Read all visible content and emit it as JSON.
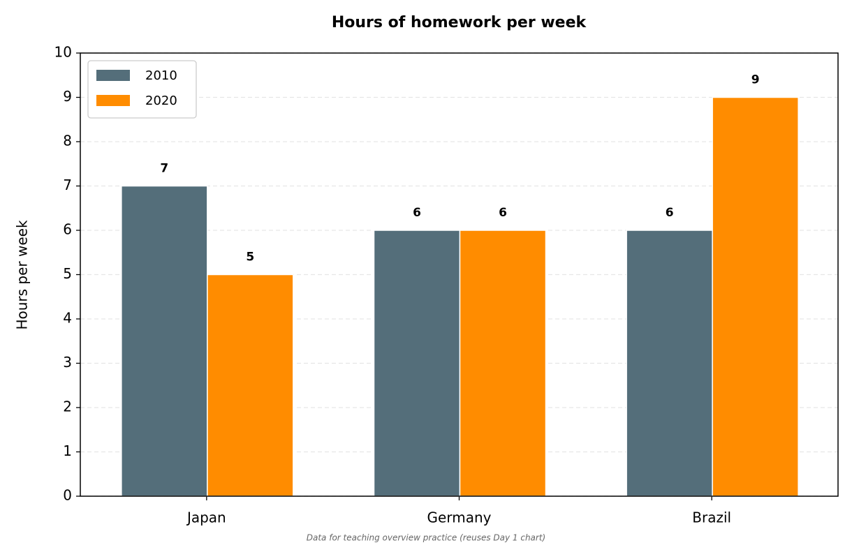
{
  "chart_data": {
    "type": "bar",
    "title": "Hours of homework per week",
    "ylabel": "Hours per week",
    "caption": "Data for teaching overview practice (reuses Day 1 chart)",
    "categories": [
      "Japan",
      "Germany",
      "Brazil"
    ],
    "series": [
      {
        "name": "2010",
        "color": "#546e7a",
        "values": [
          7,
          6,
          6
        ]
      },
      {
        "name": "2020",
        "color": "#ff8c00",
        "values": [
          5,
          6,
          9
        ]
      }
    ],
    "ylim": [
      0,
      10
    ],
    "yticks": [
      0,
      1,
      2,
      3,
      4,
      5,
      6,
      7,
      8,
      9,
      10
    ],
    "grid": true,
    "legend": "upper left"
  }
}
